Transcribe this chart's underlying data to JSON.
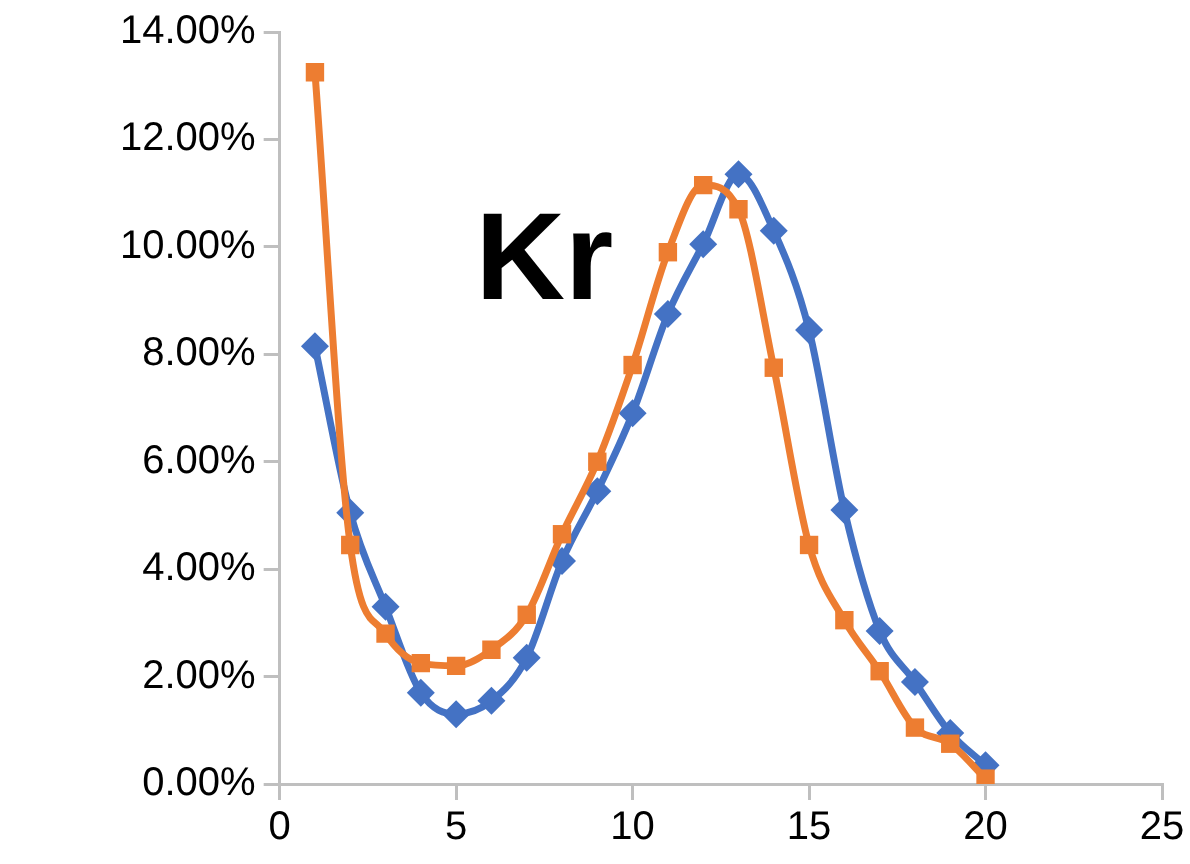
{
  "chart_data": {
    "type": "line",
    "x": [
      1,
      2,
      3,
      4,
      5,
      6,
      7,
      8,
      9,
      10,
      11,
      12,
      13,
      14,
      15,
      16,
      17,
      18,
      19,
      20
    ],
    "series": [
      {
        "color": "#4472c4",
        "marker": "diamond",
        "values": [
          8.15,
          5.05,
          3.3,
          1.7,
          1.3,
          1.55,
          2.35,
          4.15,
          5.45,
          6.9,
          8.75,
          10.05,
          11.35,
          10.3,
          8.45,
          5.1,
          2.85,
          1.9,
          0.95,
          0.35
        ]
      },
      {
        "color": "#ed7d31",
        "marker": "square",
        "values": [
          13.25,
          4.45,
          2.8,
          2.25,
          2.2,
          2.5,
          3.15,
          4.65,
          6.0,
          7.8,
          9.9,
          11.15,
          10.7,
          7.75,
          4.45,
          3.05,
          2.1,
          1.05,
          0.75,
          0.1
        ]
      }
    ],
    "xlim": [
      0,
      25
    ],
    "xticks": [
      0,
      5,
      10,
      15,
      20,
      25
    ],
    "ylim": [
      0,
      14
    ],
    "yticks": [
      {
        "value": 0,
        "label": "0.00%"
      },
      {
        "value": 2,
        "label": "2.00%"
      },
      {
        "value": 4,
        "label": "4.00%"
      },
      {
        "value": 6,
        "label": "6.00%"
      },
      {
        "value": 8,
        "label": "8.00%"
      },
      {
        "value": 10,
        "label": "10.00%"
      },
      {
        "value": 12,
        "label": "12.00%"
      },
      {
        "value": 14,
        "label": "14.00%"
      }
    ],
    "annotations": [
      "Kr"
    ],
    "grid": false,
    "legend": false
  }
}
